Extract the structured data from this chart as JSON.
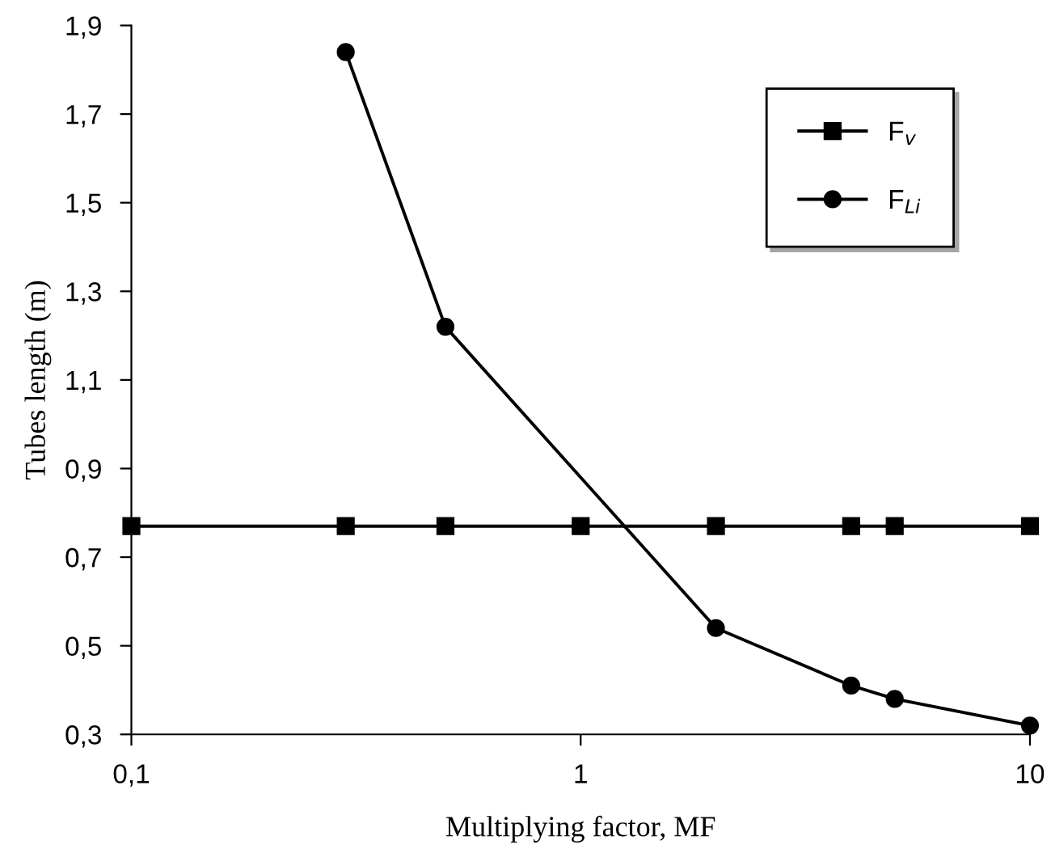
{
  "chart_data": {
    "type": "line",
    "xlabel": "Multiplying factor, MF",
    "ylabel": "Tubes length (m)",
    "log": "x",
    "xlim": [
      0.1,
      10
    ],
    "xticks": [
      {
        "value": 0.1,
        "label": "0,1"
      },
      1,
      10
    ],
    "ylim": [
      0.3,
      1.9
    ],
    "yticks": [
      {
        "value": 0.3,
        "label": "0,3"
      },
      {
        "value": 0.5,
        "label": "0,5"
      },
      {
        "value": 0.7,
        "label": "0,7"
      },
      {
        "value": 0.9,
        "label": "0,9"
      },
      {
        "value": 1.1,
        "label": "1,1"
      },
      {
        "value": 1.3,
        "label": "1,3"
      },
      {
        "value": 1.5,
        "label": "1,5"
      },
      {
        "value": 1.7,
        "label": "1,7"
      },
      {
        "value": 1.9,
        "label": "1,9"
      }
    ],
    "grid": false,
    "legend": "top right",
    "line_style": "solid",
    "series": [
      {
        "name": "F$_{v}$",
        "color": "#000000",
        "marker": "square",
        "x": [
          0.1,
          0.3,
          0.5,
          1,
          2,
          4,
          5,
          10
        ],
        "values": [
          0.77,
          0.77,
          0.77,
          0.77,
          0.77,
          0.77,
          0.77,
          0.77
        ]
      },
      {
        "name": "F$_{Li}$",
        "color": "#000000",
        "marker": "circle",
        "x": [
          0.3,
          0.5,
          2,
          4,
          5,
          10
        ],
        "values": [
          1.84,
          1.22,
          0.54,
          0.41,
          0.38,
          0.32
        ]
      }
    ]
  }
}
